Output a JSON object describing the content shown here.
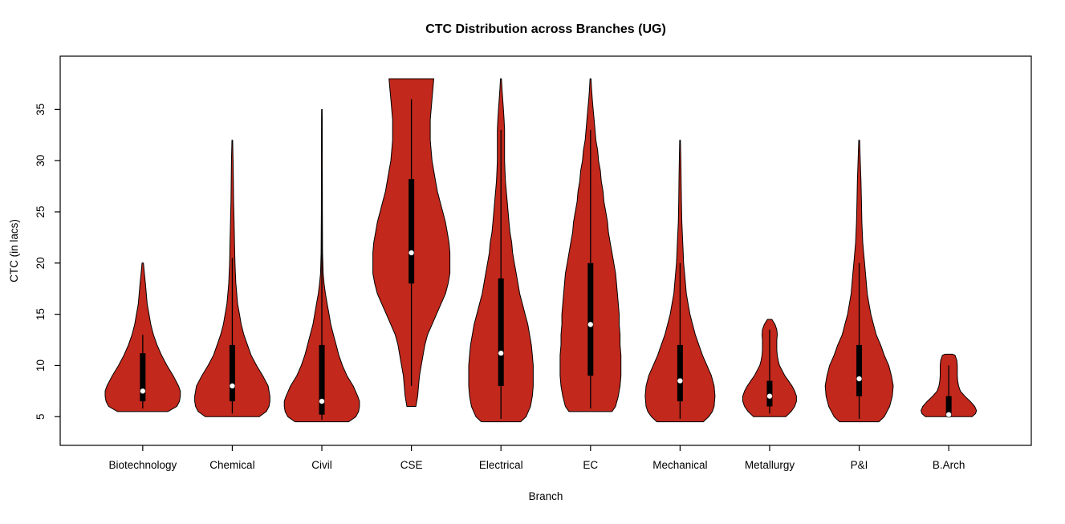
{
  "chart_data": {
    "type": "violin",
    "title": "CTC Distribution across Branches (UG)",
    "xlabel": "Branch",
    "ylabel": "CTC (in lacs)",
    "ylim": [
      2.2,
      40.2
    ],
    "yticks": [
      5,
      10,
      15,
      20,
      25,
      30,
      35
    ],
    "grid": false,
    "legend": "none",
    "violin_color": "#c2281c",
    "outline_color": "#000000",
    "box_color": "#000000",
    "median_dot_color": "#ffffff",
    "background_color": "#ffffff",
    "categories": [
      "Biotechnology",
      "Chemical",
      "Civil",
      "CSE",
      "Electrical",
      "EC",
      "Mechanical",
      "Metallurgy",
      "P&I",
      "B.Arch"
    ],
    "series": [
      {
        "name": "Biotechnology",
        "min": 5.5,
        "max": 20,
        "q1": 6.5,
        "q3": 11.2,
        "median": 7.5,
        "whisker_low": 5.8,
        "whisker_high": 13,
        "profile": [
          [
            5.5,
            0.28
          ],
          [
            6,
            0.38
          ],
          [
            6.5,
            0.41
          ],
          [
            7,
            0.42
          ],
          [
            7.5,
            0.42
          ],
          [
            8,
            0.4
          ],
          [
            9,
            0.34
          ],
          [
            10,
            0.27
          ],
          [
            11,
            0.21
          ],
          [
            12,
            0.16
          ],
          [
            13,
            0.12
          ],
          [
            14,
            0.09
          ],
          [
            15,
            0.07
          ],
          [
            16,
            0.05
          ],
          [
            17,
            0.04
          ],
          [
            18,
            0.03
          ],
          [
            19,
            0.018
          ],
          [
            20,
            0.008
          ]
        ]
      },
      {
        "name": "Chemical",
        "min": 5,
        "max": 32,
        "q1": 6.5,
        "q3": 12,
        "median": 8,
        "whisker_low": 5.3,
        "whisker_high": 20.5,
        "profile": [
          [
            5,
            0.3
          ],
          [
            5.5,
            0.38
          ],
          [
            6,
            0.41
          ],
          [
            6.5,
            0.42
          ],
          [
            7,
            0.42
          ],
          [
            8,
            0.4
          ],
          [
            9,
            0.34
          ],
          [
            10,
            0.27
          ],
          [
            11,
            0.21
          ],
          [
            12,
            0.17
          ],
          [
            13,
            0.13
          ],
          [
            14,
            0.1
          ],
          [
            15,
            0.08
          ],
          [
            16,
            0.06
          ],
          [
            17,
            0.05
          ],
          [
            18,
            0.04
          ],
          [
            19,
            0.035
          ],
          [
            20,
            0.03
          ],
          [
            22,
            0.025
          ],
          [
            24,
            0.02
          ],
          [
            26,
            0.015
          ],
          [
            28,
            0.012
          ],
          [
            30,
            0.009
          ],
          [
            32,
            0.004
          ]
        ]
      },
      {
        "name": "Civil",
        "min": 4.5,
        "max": 35,
        "q1": 5.2,
        "q3": 12,
        "median": 6.5,
        "whisker_low": 4.7,
        "whisker_high": 29,
        "profile": [
          [
            4.5,
            0.3
          ],
          [
            5,
            0.38
          ],
          [
            5.5,
            0.41
          ],
          [
            6,
            0.42
          ],
          [
            6.5,
            0.42
          ],
          [
            7,
            0.4
          ],
          [
            8,
            0.35
          ],
          [
            9,
            0.28
          ],
          [
            10,
            0.23
          ],
          [
            11,
            0.19
          ],
          [
            12,
            0.16
          ],
          [
            13,
            0.13
          ],
          [
            14,
            0.1
          ],
          [
            15,
            0.08
          ],
          [
            16,
            0.06
          ],
          [
            17,
            0.04
          ],
          [
            18,
            0.025
          ],
          [
            19,
            0.015
          ],
          [
            21,
            0.008
          ],
          [
            25,
            0.006
          ],
          [
            30,
            0.005
          ],
          [
            34,
            0.004
          ],
          [
            35,
            0.003
          ]
        ]
      },
      {
        "name": "CSE",
        "min": 6,
        "max": 38,
        "q1": 18,
        "q3": 28.2,
        "median": 21,
        "whisker_low": 8,
        "whisker_high": 36,
        "profile": [
          [
            6,
            0.05
          ],
          [
            7,
            0.07
          ],
          [
            8,
            0.08
          ],
          [
            9,
            0.09
          ],
          [
            10,
            0.11
          ],
          [
            11,
            0.13
          ],
          [
            12,
            0.15
          ],
          [
            13,
            0.18
          ],
          [
            14,
            0.23
          ],
          [
            15,
            0.28
          ],
          [
            16,
            0.33
          ],
          [
            17,
            0.38
          ],
          [
            18,
            0.41
          ],
          [
            19,
            0.43
          ],
          [
            20,
            0.43
          ],
          [
            21,
            0.43
          ],
          [
            22,
            0.42
          ],
          [
            23,
            0.4
          ],
          [
            24,
            0.38
          ],
          [
            25,
            0.35
          ],
          [
            26,
            0.32
          ],
          [
            27,
            0.29
          ],
          [
            28,
            0.27
          ],
          [
            29,
            0.25
          ],
          [
            30,
            0.23
          ],
          [
            31,
            0.22
          ],
          [
            32,
            0.21
          ],
          [
            33,
            0.21
          ],
          [
            34,
            0.21
          ],
          [
            35,
            0.22
          ],
          [
            36,
            0.23
          ],
          [
            37,
            0.24
          ],
          [
            38,
            0.25
          ]
        ]
      },
      {
        "name": "Electrical",
        "min": 4.5,
        "max": 38,
        "q1": 8,
        "q3": 18.5,
        "median": 11.2,
        "whisker_low": 4.8,
        "whisker_high": 33,
        "profile": [
          [
            4.5,
            0.22
          ],
          [
            5,
            0.28
          ],
          [
            6,
            0.33
          ],
          [
            7,
            0.35
          ],
          [
            8,
            0.36
          ],
          [
            9,
            0.36
          ],
          [
            10,
            0.36
          ],
          [
            11,
            0.35
          ],
          [
            12,
            0.34
          ],
          [
            13,
            0.32
          ],
          [
            14,
            0.3
          ],
          [
            15,
            0.27
          ],
          [
            16,
            0.24
          ],
          [
            17,
            0.21
          ],
          [
            18,
            0.19
          ],
          [
            19,
            0.17
          ],
          [
            20,
            0.15
          ],
          [
            21,
            0.13
          ],
          [
            22,
            0.12
          ],
          [
            23,
            0.1
          ],
          [
            24,
            0.09
          ],
          [
            25,
            0.08
          ],
          [
            26,
            0.07
          ],
          [
            27,
            0.06
          ],
          [
            28,
            0.05
          ],
          [
            29,
            0.045
          ],
          [
            30,
            0.04
          ],
          [
            31,
            0.04
          ],
          [
            32,
            0.04
          ],
          [
            33,
            0.04
          ],
          [
            34,
            0.035
          ],
          [
            35,
            0.028
          ],
          [
            36,
            0.02
          ],
          [
            37,
            0.012
          ],
          [
            38,
            0.005
          ]
        ]
      },
      {
        "name": "EC",
        "min": 5.5,
        "max": 38,
        "q1": 9,
        "q3": 20,
        "median": 14,
        "whisker_low": 5.8,
        "whisker_high": 33,
        "profile": [
          [
            5.5,
            0.24
          ],
          [
            6,
            0.28
          ],
          [
            7,
            0.31
          ],
          [
            8,
            0.33
          ],
          [
            9,
            0.34
          ],
          [
            10,
            0.34
          ],
          [
            11,
            0.34
          ],
          [
            12,
            0.33
          ],
          [
            13,
            0.33
          ],
          [
            14,
            0.32
          ],
          [
            15,
            0.32
          ],
          [
            16,
            0.31
          ],
          [
            17,
            0.3
          ],
          [
            18,
            0.29
          ],
          [
            19,
            0.28
          ],
          [
            20,
            0.26
          ],
          [
            21,
            0.24
          ],
          [
            22,
            0.22
          ],
          [
            23,
            0.2
          ],
          [
            24,
            0.19
          ],
          [
            25,
            0.17
          ],
          [
            26,
            0.15
          ],
          [
            27,
            0.14
          ],
          [
            28,
            0.12
          ],
          [
            29,
            0.11
          ],
          [
            30,
            0.09
          ],
          [
            31,
            0.08
          ],
          [
            32,
            0.06
          ],
          [
            33,
            0.05
          ],
          [
            34,
            0.04
          ],
          [
            35,
            0.03
          ],
          [
            36,
            0.02
          ],
          [
            37,
            0.012
          ],
          [
            38,
            0.005
          ]
        ]
      },
      {
        "name": "Mechanical",
        "min": 4.5,
        "max": 32,
        "q1": 6.5,
        "q3": 12,
        "median": 8.5,
        "whisker_low": 4.8,
        "whisker_high": 20,
        "profile": [
          [
            4.5,
            0.26
          ],
          [
            5,
            0.32
          ],
          [
            5.5,
            0.36
          ],
          [
            6,
            0.38
          ],
          [
            7,
            0.39
          ],
          [
            8,
            0.38
          ],
          [
            9,
            0.35
          ],
          [
            10,
            0.3
          ],
          [
            11,
            0.25
          ],
          [
            12,
            0.21
          ],
          [
            13,
            0.17
          ],
          [
            14,
            0.14
          ],
          [
            15,
            0.11
          ],
          [
            16,
            0.09
          ],
          [
            17,
            0.07
          ],
          [
            18,
            0.06
          ],
          [
            19,
            0.05
          ],
          [
            20,
            0.04
          ],
          [
            21,
            0.035
          ],
          [
            22,
            0.03
          ],
          [
            24,
            0.02
          ],
          [
            26,
            0.015
          ],
          [
            28,
            0.012
          ],
          [
            30,
            0.009
          ],
          [
            32,
            0.004
          ]
        ]
      },
      {
        "name": "Metallurgy",
        "min": 5,
        "max": 14.5,
        "q1": 6,
        "q3": 8.5,
        "median": 7,
        "whisker_low": 5.3,
        "whisker_high": 13.5,
        "profile": [
          [
            5,
            0.18
          ],
          [
            5.5,
            0.24
          ],
          [
            6,
            0.28
          ],
          [
            6.5,
            0.3
          ],
          [
            7,
            0.3
          ],
          [
            7.5,
            0.28
          ],
          [
            8,
            0.25
          ],
          [
            8.5,
            0.21
          ],
          [
            9,
            0.17
          ],
          [
            9.5,
            0.14
          ],
          [
            10,
            0.11
          ],
          [
            10.5,
            0.095
          ],
          [
            11,
            0.085
          ],
          [
            11.5,
            0.08
          ],
          [
            12,
            0.08
          ],
          [
            12.5,
            0.08
          ],
          [
            13,
            0.085
          ],
          [
            13.5,
            0.08
          ],
          [
            14,
            0.06
          ],
          [
            14.5,
            0.025
          ]
        ]
      },
      {
        "name": "P&I",
        "min": 4.5,
        "max": 32,
        "q1": 7,
        "q3": 12,
        "median": 8.7,
        "whisker_low": 4.8,
        "whisker_high": 20,
        "profile": [
          [
            4.5,
            0.22
          ],
          [
            5,
            0.28
          ],
          [
            6,
            0.34
          ],
          [
            7,
            0.37
          ],
          [
            8,
            0.38
          ],
          [
            9,
            0.36
          ],
          [
            10,
            0.33
          ],
          [
            11,
            0.28
          ],
          [
            12,
            0.24
          ],
          [
            13,
            0.19
          ],
          [
            14,
            0.16
          ],
          [
            15,
            0.13
          ],
          [
            16,
            0.11
          ],
          [
            17,
            0.09
          ],
          [
            18,
            0.08
          ],
          [
            19,
            0.07
          ],
          [
            20,
            0.06
          ],
          [
            21,
            0.05
          ],
          [
            22,
            0.04
          ],
          [
            24,
            0.03
          ],
          [
            26,
            0.025
          ],
          [
            28,
            0.02
          ],
          [
            30,
            0.012
          ],
          [
            32,
            0.005
          ]
        ]
      },
      {
        "name": "B.Arch",
        "min": 5,
        "max": 11.1,
        "q1": 5,
        "q3": 7,
        "median": 5.2,
        "whisker_low": 5,
        "whisker_high": 10,
        "profile": [
          [
            5,
            0.26
          ],
          [
            5.3,
            0.3
          ],
          [
            5.6,
            0.31
          ],
          [
            6,
            0.29
          ],
          [
            6.5,
            0.24
          ],
          [
            7,
            0.18
          ],
          [
            7.5,
            0.13
          ],
          [
            8,
            0.11
          ],
          [
            8.5,
            0.1
          ],
          [
            9,
            0.095
          ],
          [
            9.5,
            0.095
          ],
          [
            10,
            0.095
          ],
          [
            10.5,
            0.09
          ],
          [
            11,
            0.07
          ],
          [
            11.1,
            0.04
          ]
        ]
      }
    ]
  }
}
